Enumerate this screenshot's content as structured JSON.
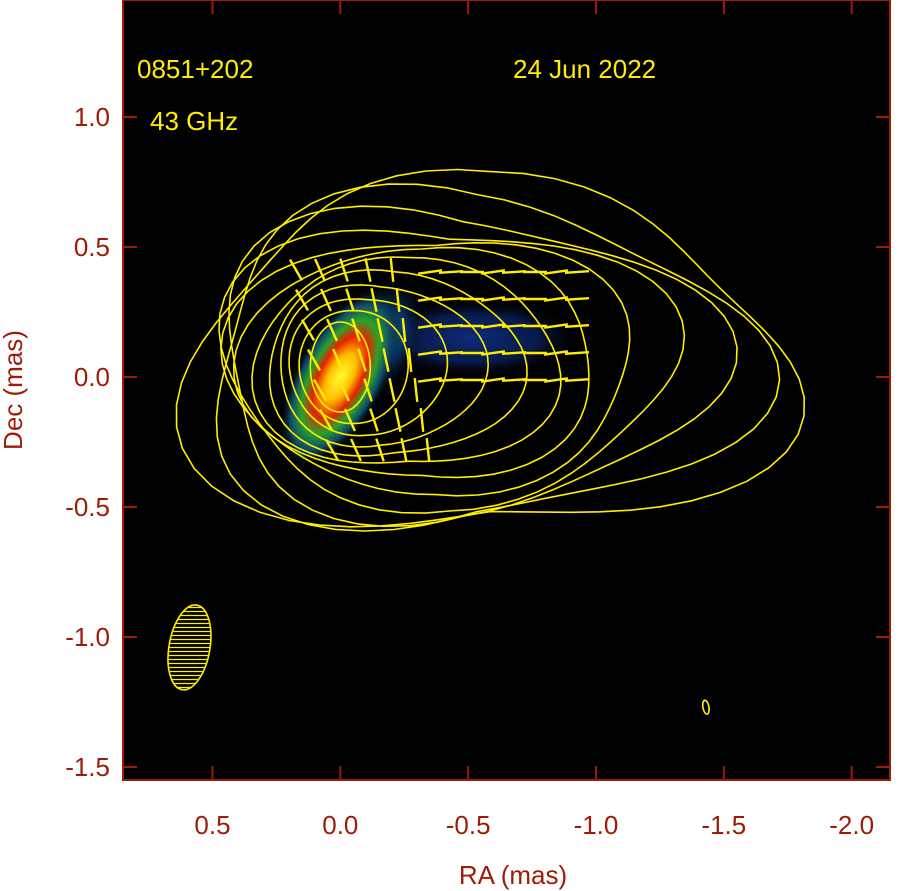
{
  "chart_data": {
    "type": "heatmap",
    "description_kind": "VLBI total-intensity image with contours and polarization vectors",
    "annotations": {
      "source": "0851+202",
      "frequency": "43 GHz",
      "date": "24 Jun 2022"
    },
    "xlabel": "RA (mas)",
    "ylabel": "Dec (mas)",
    "xlim": [
      0.85,
      -2.15
    ],
    "ylim": [
      -1.55,
      1.45
    ],
    "x_ticks": [
      {
        "value": 0.5,
        "label": "0.5"
      },
      {
        "value": 0.0,
        "label": "0.0"
      },
      {
        "value": -0.5,
        "label": "-0.5"
      },
      {
        "value": -1.0,
        "label": "-1.0"
      },
      {
        "value": -1.5,
        "label": "-1.5"
      },
      {
        "value": -2.0,
        "label": "-2.0"
      }
    ],
    "y_ticks": [
      {
        "value": 1.0,
        "label": "1.0"
      },
      {
        "value": 0.5,
        "label": "0.5"
      },
      {
        "value": 0.0,
        "label": "0.0"
      },
      {
        "value": -0.5,
        "label": "-0.5"
      },
      {
        "value": -1.0,
        "label": "-1.0"
      },
      {
        "value": -1.5,
        "label": "-1.5"
      }
    ],
    "beam": {
      "x": 0.59,
      "y": -1.04,
      "major": 0.33,
      "minor": 0.16,
      "pa_deg": 10
    },
    "core": {
      "x": 0.0,
      "y": 0.0
    },
    "colors": {
      "background": "#000000",
      "contour": "#ffee00",
      "frame_text": "#9e1b07"
    }
  }
}
